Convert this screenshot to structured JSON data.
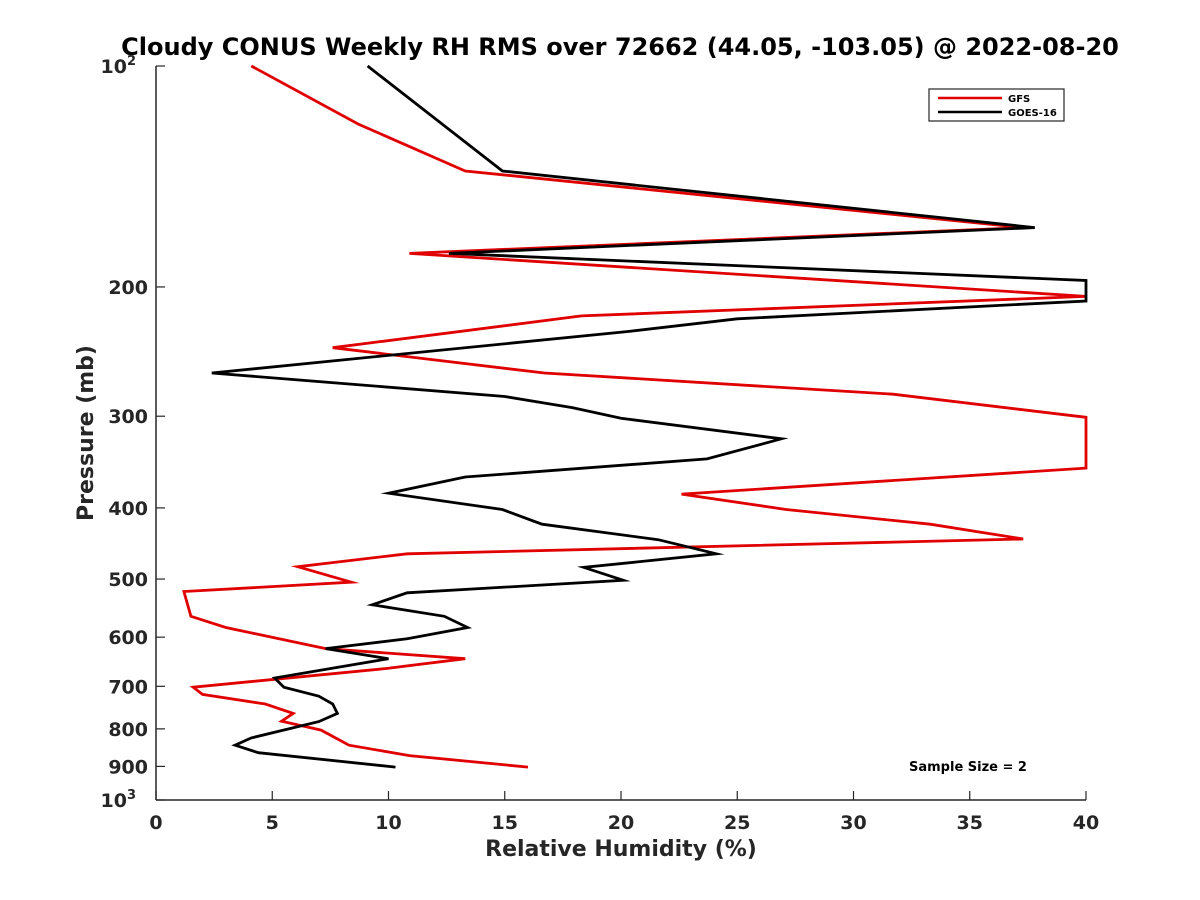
{
  "chart_data": {
    "type": "line",
    "title": "Cloudy CONUS Weekly RH RMS over 72662 (44.05, -103.05) @ 2022-08-20",
    "xlabel": "Relative Humidity (%)",
    "ylabel": "Pressure (mb)",
    "xlim": [
      0,
      40
    ],
    "ylim": [
      100,
      1000
    ],
    "yscale": "log",
    "y_reversed": true,
    "x_ticks": [
      "0",
      "5",
      "10",
      "15",
      "20",
      "25",
      "30",
      "35",
      "40"
    ],
    "y_ticks": [
      {
        "value": 100,
        "base": "10",
        "exp": "2"
      },
      {
        "value": 200,
        "label": "200"
      },
      {
        "value": 300,
        "label": "300"
      },
      {
        "value": 400,
        "label": "400"
      },
      {
        "value": 500,
        "label": "500"
      },
      {
        "value": 600,
        "label": "600"
      },
      {
        "value": 700,
        "label": "700"
      },
      {
        "value": 800,
        "label": "800"
      },
      {
        "value": 900,
        "label": "900"
      },
      {
        "value": 1000,
        "base": "10",
        "exp": "3"
      }
    ],
    "legend_position": "top-right",
    "grid": false,
    "series": [
      {
        "name": "GFS",
        "color": "#e00000",
        "points": [
          [
            4.1,
            100
          ],
          [
            8.7,
            120
          ],
          [
            13.3,
            139
          ],
          [
            37.3,
            166
          ],
          [
            10.9,
            180
          ],
          [
            40.0,
            206
          ],
          [
            18.3,
            219
          ],
          [
            7.6,
            242
          ],
          [
            16.7,
            262
          ],
          [
            31.7,
            280
          ],
          [
            40.0,
            301
          ],
          [
            40.0,
            353
          ],
          [
            22.6,
            383
          ],
          [
            27.1,
            402
          ],
          [
            33.3,
            421
          ],
          [
            37.3,
            441
          ],
          [
            10.8,
            462
          ],
          [
            6.1,
            481
          ],
          [
            8.4,
            505
          ],
          [
            1.2,
            520
          ],
          [
            1.5,
            562
          ],
          [
            3.0,
            582
          ],
          [
            7.3,
            622
          ],
          [
            13.3,
            642
          ],
          [
            9.9,
            662
          ],
          [
            1.6,
            702
          ],
          [
            2.0,
            718
          ],
          [
            4.7,
            740
          ],
          [
            5.9,
            762
          ],
          [
            5.4,
            781
          ],
          [
            7.1,
            803
          ],
          [
            8.3,
            842
          ],
          [
            10.9,
            870
          ],
          [
            16.0,
            902
          ]
        ]
      },
      {
        "name": "GOES-16",
        "color": "#000000",
        "points": [
          [
            9.1,
            100
          ],
          [
            14.9,
            139
          ],
          [
            37.8,
            166
          ],
          [
            12.6,
            180
          ],
          [
            40.0,
            196
          ],
          [
            40.0,
            209
          ],
          [
            25.0,
            221
          ],
          [
            20.3,
            230
          ],
          [
            2.4,
            262
          ],
          [
            15.0,
            282
          ],
          [
            17.9,
            292
          ],
          [
            20.0,
            302
          ],
          [
            26.9,
            322
          ],
          [
            23.7,
            343
          ],
          [
            13.3,
            363
          ],
          [
            10.0,
            382
          ],
          [
            14.9,
            402
          ],
          [
            16.6,
            421
          ],
          [
            21.6,
            442
          ],
          [
            24.1,
            462
          ],
          [
            18.4,
            482
          ],
          [
            20.1,
            502
          ],
          [
            10.8,
            522
          ],
          [
            9.3,
            542
          ],
          [
            12.4,
            562
          ],
          [
            13.4,
            582
          ],
          [
            10.8,
            603
          ],
          [
            7.3,
            622
          ],
          [
            10.0,
            642
          ],
          [
            5.1,
            682
          ],
          [
            5.5,
            702
          ],
          [
            7.0,
            722
          ],
          [
            7.6,
            740
          ],
          [
            7.8,
            762
          ],
          [
            7.0,
            782
          ],
          [
            4.1,
            823
          ],
          [
            3.4,
            842
          ],
          [
            4.4,
            862
          ],
          [
            10.3,
            902
          ]
        ]
      }
    ],
    "annotation": "Sample Size = 2"
  }
}
